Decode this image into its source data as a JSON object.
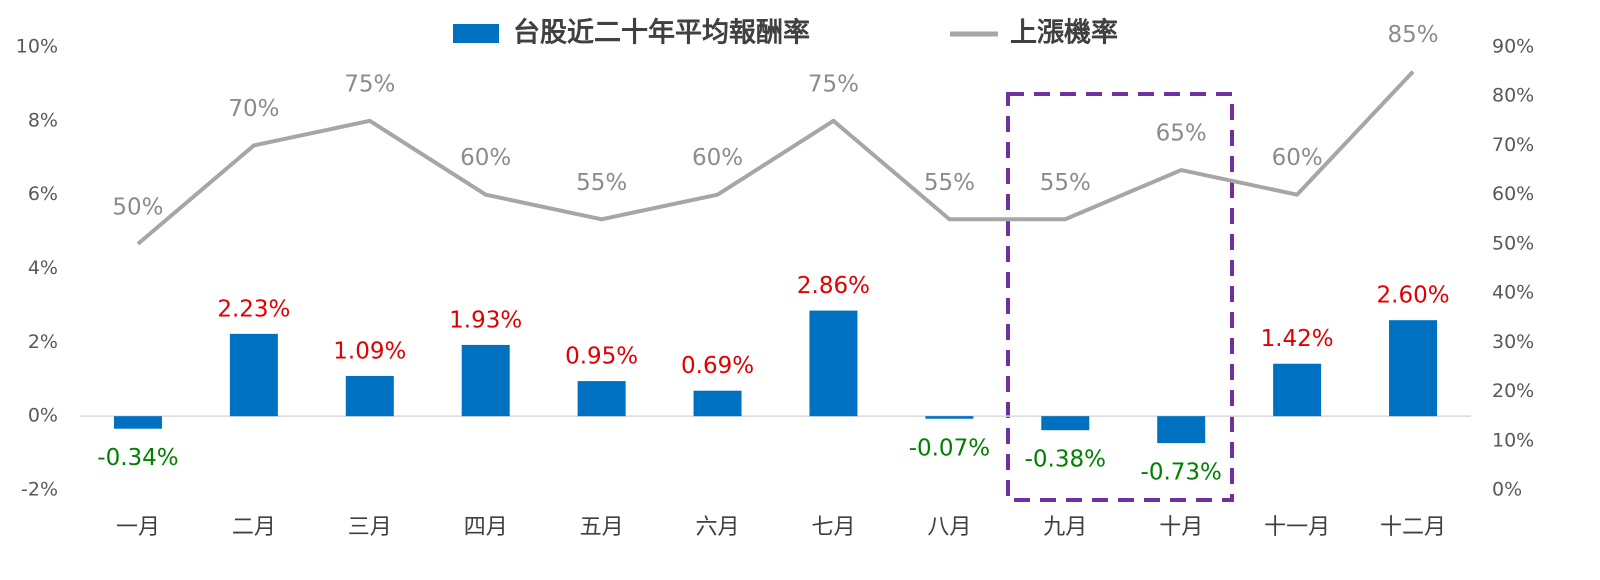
{
  "chart_data": {
    "type": "combo",
    "categories": [
      "一月",
      "二月",
      "三月",
      "四月",
      "五月",
      "六月",
      "七月",
      "八月",
      "九月",
      "十月",
      "十一月",
      "十二月"
    ],
    "series": [
      {
        "name": "台股近二十年平均報酬率",
        "type": "bar",
        "color": "#0070c0",
        "values": [
          -0.34,
          2.23,
          1.09,
          1.93,
          0.95,
          0.69,
          2.86,
          -0.07,
          -0.38,
          -0.73,
          1.42,
          2.6
        ],
        "value_labels": [
          "-0.34%",
          "2.23%",
          "1.09%",
          "1.93%",
          "0.95%",
          "0.69%",
          "2.86%",
          "-0.07%",
          "-0.38%",
          "-0.73%",
          "1.42%",
          "2.60%"
        ]
      },
      {
        "name": "上漲機率",
        "type": "line",
        "axis": "y2",
        "color": "#a6a6a6",
        "values": [
          50,
          70,
          75,
          60,
          55,
          60,
          75,
          55,
          55,
          65,
          60,
          85
        ],
        "value_labels": [
          "50%",
          "70%",
          "75%",
          "60%",
          "55%",
          "60%",
          "75%",
          "55%",
          "55%",
          "65%",
          "60%",
          "85%"
        ]
      }
    ],
    "positive_label_color": "#e00000",
    "negative_label_color": "#008000",
    "ylim": [
      -2,
      10
    ],
    "yticks": [
      {
        "value": -2,
        "label": "-2%"
      },
      {
        "value": 0,
        "label": "0%"
      },
      {
        "value": 2,
        "label": "2%"
      },
      {
        "value": 4,
        "label": "4%"
      },
      {
        "value": 6,
        "label": "6%"
      },
      {
        "value": 8,
        "label": "8%"
      },
      {
        "value": 10,
        "label": "10%"
      }
    ],
    "y2lim": [
      0,
      90
    ],
    "y2ticks": [
      {
        "value": 0,
        "label": "0%"
      },
      {
        "value": 10,
        "label": "10%"
      },
      {
        "value": 20,
        "label": "20%"
      },
      {
        "value": 30,
        "label": "30%"
      },
      {
        "value": 40,
        "label": "40%"
      },
      {
        "value": 50,
        "label": "50%"
      },
      {
        "value": 60,
        "label": "60%"
      },
      {
        "value": 70,
        "label": "70%"
      },
      {
        "value": 80,
        "label": "80%"
      },
      {
        "value": 90,
        "label": "90%"
      }
    ],
    "grid": false,
    "legend": "top"
  }
}
